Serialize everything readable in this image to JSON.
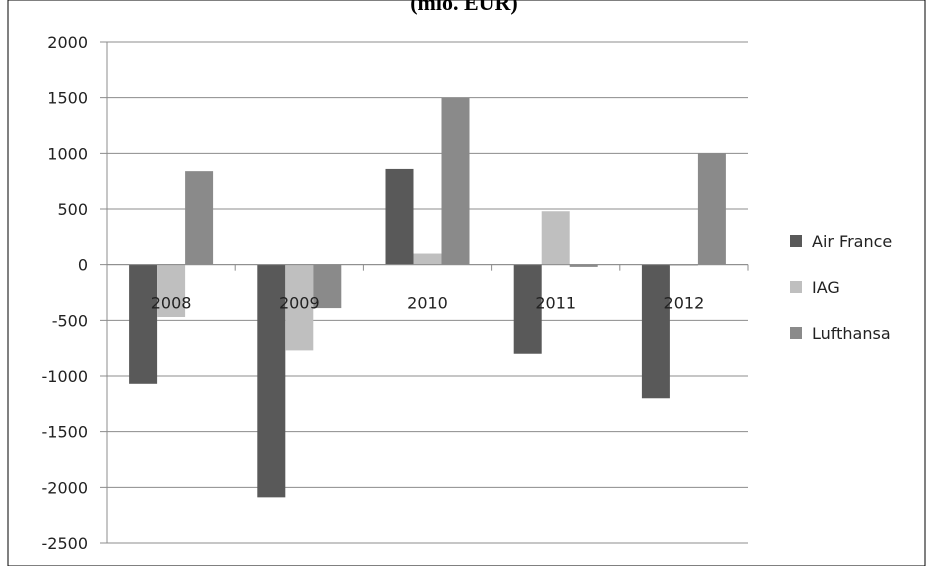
{
  "chart_data": {
    "type": "bar",
    "title": "(mlo. EUR)",
    "categories": [
      "2008",
      "2009",
      "2010",
      "2011",
      "2012"
    ],
    "series": [
      {
        "name": "Air France",
        "color": "#595959",
        "values": [
          -1070,
          -2090,
          860,
          -800,
          -1200
        ]
      },
      {
        "name": "IAG",
        "color": "#bfbfbf",
        "values": [
          -470,
          -770,
          100,
          480,
          -10
        ]
      },
      {
        "name": "Lufthansa",
        "color": "#8a8a8a",
        "values": [
          840,
          -390,
          1500,
          -20,
          1000
        ]
      }
    ],
    "ylim": [
      -2500,
      2000
    ],
    "yticks": [
      2000,
      1500,
      1000,
      500,
      0,
      -500,
      -1000,
      -1500,
      -2000,
      -2500
    ],
    "grid": true,
    "legend": "right",
    "xlabel": "",
    "ylabel": ""
  }
}
